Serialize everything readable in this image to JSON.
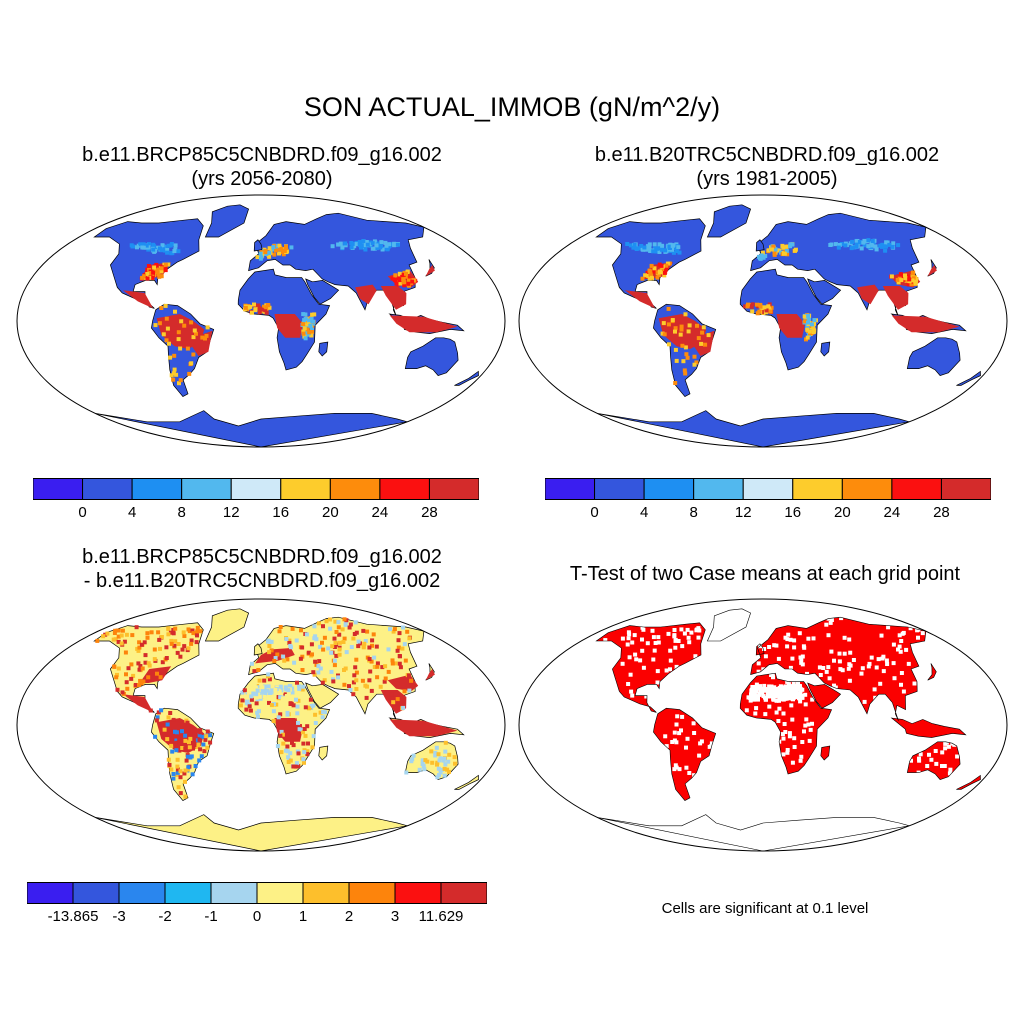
{
  "main_title": "SON ACTUAL_IMMOB (gN/m^2/y)",
  "panels": {
    "top_left": {
      "title_line1": "b.e11.BRCP85C5CNBDRD.f09_g16.002",
      "title_line2": "(yrs 2056-2080)"
    },
    "top_right": {
      "title_line1": "b.e11.B20TRC5CNBDRD.f09_g16.002",
      "title_line2": "(yrs 1981-2005)"
    },
    "bottom_left": {
      "title_line1": "b.e11.BRCP85C5CNBDRD.f09_g16.002",
      "title_line2": "- b.e11.B20TRC5CNBDRD.f09_g16.002"
    },
    "bottom_right": {
      "title_line1": "T-Test of two Case means at each grid point",
      "note": "Cells are significant at 0.1 level"
    }
  },
  "colorbars": {
    "absolute": {
      "colors": [
        "#3a1ef0",
        "#3456dd",
        "#1e8ff2",
        "#52b8ee",
        "#cfe9f8",
        "#fdcc2c",
        "#fd8c0c",
        "#fb1010",
        "#d42b2b"
      ],
      "labels": [
        "0",
        "4",
        "8",
        "12",
        "16",
        "20",
        "24",
        "28"
      ]
    },
    "difference": {
      "colors": [
        "#3a1ef0",
        "#3456dd",
        "#2a86ee",
        "#1fb7f1",
        "#a6d5ef",
        "#fdf186",
        "#fdbf2c",
        "#fd840c",
        "#fb1010",
        "#d42b2b"
      ],
      "labels": [
        "-13.865",
        "-3",
        "-2",
        "-1",
        "0",
        "1",
        "2",
        "3",
        "11.629"
      ]
    }
  },
  "map_colors": {
    "ocean": "#ffffff",
    "absolute_land_base": "#3456dd",
    "absolute_hot": "#d42b2b",
    "absolute_warm": "#fb1010",
    "absolute_orange": "#fd8c0c",
    "absolute_yellow": "#fdcc2c",
    "absolute_light": "#52b8ee",
    "difference_land_base": "#fdf186",
    "difference_hot": "#d42b2b",
    "difference_orange": "#fdbf2c",
    "difference_light": "#a6d5ef",
    "significance": "#fb0000"
  }
}
